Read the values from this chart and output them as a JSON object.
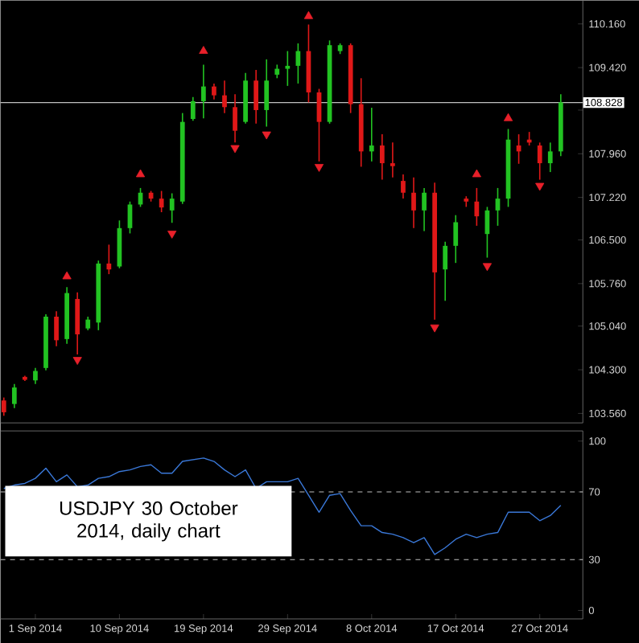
{
  "chart_data": [
    {
      "type": "candlestick",
      "categories": [
        null,
        null,
        null,
        null,
        null,
        null,
        null,
        null,
        null,
        null,
        null,
        null,
        null,
        null,
        null,
        null,
        null,
        null,
        null,
        null,
        null,
        null,
        null,
        null,
        null,
        null,
        null,
        null,
        null,
        null,
        null,
        null,
        null,
        null,
        null,
        null,
        null,
        null,
        null,
        null,
        null,
        null,
        null,
        null,
        null,
        null,
        null,
        null,
        null,
        null,
        null,
        null,
        null,
        null
      ],
      "ohlc": [
        [
          103.78,
          103.83,
          103.52,
          103.58
        ],
        [
          103.72,
          104.06,
          103.65,
          104.0
        ],
        [
          104.18,
          104.2,
          104.11,
          104.13
        ],
        [
          104.12,
          104.33,
          104.06,
          104.28
        ],
        [
          104.33,
          105.24,
          104.29,
          105.2
        ],
        [
          105.2,
          105.29,
          104.7,
          104.8
        ],
        [
          104.82,
          105.7,
          104.74,
          105.6
        ],
        [
          105.5,
          105.61,
          104.56,
          104.9
        ],
        [
          105.0,
          105.2,
          104.97,
          105.15
        ],
        [
          105.1,
          106.15,
          104.97,
          106.1
        ],
        [
          106.1,
          106.42,
          105.92,
          106.0
        ],
        [
          106.05,
          106.83,
          106.02,
          106.7
        ],
        [
          106.7,
          107.15,
          106.61,
          107.1
        ],
        [
          107.1,
          107.38,
          107.06,
          107.3
        ],
        [
          107.3,
          107.33,
          107.15,
          107.2
        ],
        [
          107.2,
          107.33,
          106.97,
          107.05
        ],
        [
          107.0,
          107.29,
          106.79,
          107.2
        ],
        [
          107.15,
          108.65,
          107.11,
          108.5
        ],
        [
          108.55,
          108.92,
          108.52,
          108.85
        ],
        [
          108.85,
          109.47,
          108.56,
          109.1
        ],
        [
          109.1,
          109.15,
          108.88,
          108.95
        ],
        [
          108.95,
          109.2,
          108.65,
          108.75
        ],
        [
          108.75,
          108.97,
          108.15,
          108.35
        ],
        [
          108.5,
          109.33,
          108.47,
          109.2
        ],
        [
          109.2,
          109.38,
          108.47,
          108.7
        ],
        [
          108.7,
          109.56,
          108.42,
          109.2
        ],
        [
          109.3,
          109.47,
          109.24,
          109.4
        ],
        [
          109.4,
          109.7,
          109.11,
          109.45
        ],
        [
          109.45,
          109.83,
          109.15,
          109.7
        ],
        [
          109.7,
          110.15,
          108.83,
          109.0
        ],
        [
          109.0,
          109.06,
          107.83,
          108.5
        ],
        [
          108.5,
          109.88,
          108.47,
          109.8
        ],
        [
          109.7,
          109.83,
          109.65,
          109.8
        ],
        [
          109.8,
          109.83,
          108.65,
          108.8
        ],
        [
          108.8,
          109.24,
          107.74,
          108.0
        ],
        [
          108.0,
          108.74,
          107.83,
          108.1
        ],
        [
          108.1,
          108.29,
          107.52,
          107.8
        ],
        [
          107.8,
          108.15,
          107.56,
          107.75
        ],
        [
          107.5,
          107.61,
          107.2,
          107.3
        ],
        [
          107.3,
          107.56,
          106.7,
          107.0
        ],
        [
          107.0,
          107.38,
          106.65,
          107.3
        ],
        [
          107.3,
          107.47,
          105.15,
          105.95
        ],
        [
          106.0,
          106.47,
          105.47,
          106.4
        ],
        [
          106.4,
          106.92,
          106.11,
          106.8
        ],
        [
          107.2,
          107.24,
          107.06,
          107.15
        ],
        [
          107.15,
          107.38,
          106.74,
          106.9
        ],
        [
          106.6,
          107.06,
          106.2,
          107.0
        ],
        [
          107.0,
          107.38,
          106.74,
          107.2
        ],
        [
          107.2,
          108.38,
          107.06,
          108.2
        ],
        [
          108.1,
          108.29,
          107.79,
          108.0
        ],
        [
          108.2,
          108.33,
          108.1,
          108.15
        ],
        [
          108.1,
          108.15,
          107.52,
          107.8
        ],
        [
          107.8,
          108.15,
          107.65,
          108.0
        ],
        [
          108.0,
          108.97,
          107.92,
          108.83
        ]
      ],
      "colors": [
        "#e01818",
        "#22c322",
        "#e01818",
        "#22c322",
        "#22c322",
        "#e01818",
        "#22c322",
        "#e01818",
        "#22c322",
        "#22c322",
        "#e01818",
        "#22c322",
        "#22c322",
        "#22c322",
        "#e01818",
        "#e01818",
        "#22c322",
        "#22c322",
        "#22c322",
        "#22c322",
        "#e01818",
        "#e01818",
        "#e01818",
        "#22c322",
        "#e01818",
        "#22c322",
        "#22c322",
        "#22c322",
        "#22c322",
        "#e01818",
        "#e01818",
        "#22c322",
        "#22c322",
        "#e01818",
        "#e01818",
        "#22c322",
        "#e01818",
        "#e01818",
        "#e01818",
        "#e01818",
        "#22c322",
        "#e01818",
        "#22c322",
        "#22c322",
        "#e01818",
        "#e01818",
        "#22c322",
        "#22c322",
        "#22c322",
        "#e01818",
        "#e01818",
        "#e01818",
        "#22c322",
        "#22c322"
      ],
      "series": [
        {
          "type": "scatter",
          "color": "#e8202a",
          "marker": "triangle",
          "values": [
            null,
            null,
            null,
            null,
            null,
            null,
            105.88,
            null,
            null,
            null,
            null,
            null,
            null,
            107.61,
            null,
            null,
            null,
            null,
            null,
            109.7,
            null,
            null,
            null,
            null,
            null,
            null,
            null,
            null,
            null,
            110.29,
            null,
            null,
            null,
            null,
            null,
            null,
            null,
            null,
            null,
            null,
            null,
            null,
            null,
            null,
            null,
            107.61,
            null,
            null,
            108.56,
            null,
            null,
            null,
            null,
            null
          ]
        },
        {
          "type": "scatter",
          "color": "#e8202a",
          "marker": "triangle",
          "values": [
            null,
            null,
            null,
            null,
            null,
            null,
            null,
            104.47,
            null,
            null,
            null,
            null,
            null,
            null,
            null,
            null,
            106.61,
            null,
            null,
            null,
            null,
            null,
            108.06,
            null,
            null,
            108.29,
            null,
            null,
            null,
            null,
            107.74,
            null,
            null,
            null,
            null,
            null,
            null,
            null,
            null,
            null,
            null,
            105.02,
            null,
            null,
            null,
            null,
            106.06,
            null,
            null,
            null,
            null,
            107.42,
            null,
            null
          ]
        }
      ],
      "ylim": [
        103.4,
        110.56
      ],
      "yticks": [
        {
          "value": 103.56,
          "label": "103.560"
        },
        {
          "value": 104.3,
          "label": "104.300"
        },
        {
          "value": 105.04,
          "label": "105.040"
        },
        {
          "value": 105.76,
          "label": "105.760"
        },
        {
          "value": 106.5,
          "label": "106.500"
        },
        {
          "value": 107.22,
          "label": "107.220"
        },
        {
          "value": 107.96,
          "label": "107.960"
        },
        {
          "value": 108.7,
          "label": null
        },
        {
          "value": 109.42,
          "label": "109.420"
        },
        {
          "value": 110.16,
          "label": "110.160"
        }
      ],
      "tick_labels": "y",
      "ref_lines": [
        {
          "axis": "y",
          "value": 108.828,
          "label": "108.828",
          "color": "#c0c0c0"
        }
      ]
    },
    {
      "type": "line",
      "categories": [
        null,
        null,
        null,
        "1 Sep 2014",
        null,
        null,
        null,
        null,
        null,
        null,
        null,
        "10 Sep 2014",
        null,
        null,
        null,
        null,
        null,
        null,
        null,
        "19 Sep 2014",
        null,
        null,
        null,
        null,
        null,
        null,
        null,
        "29 Sep 2014",
        null,
        null,
        null,
        null,
        null,
        null,
        null,
        "8 Oct 2014",
        null,
        null,
        null,
        null,
        null,
        null,
        null,
        "17 Oct 2014",
        null,
        null,
        null,
        null,
        null,
        null,
        null,
        "27 Oct 2014",
        null,
        null
      ],
      "series": [
        {
          "color": "#3a78d8",
          "values": [
            72,
            74,
            75,
            78,
            84,
            76,
            80,
            73,
            74,
            78,
            79,
            82,
            83,
            85,
            86,
            81,
            81,
            88,
            89,
            90,
            88,
            83,
            79,
            83,
            72,
            76,
            76,
            76,
            78,
            68,
            58,
            68,
            69,
            59,
            50,
            50,
            46,
            45,
            43,
            40,
            43,
            33,
            37,
            42,
            45,
            43,
            45,
            46,
            58,
            58,
            58,
            53,
            56,
            62
          ]
        }
      ],
      "ylim": [
        -5,
        106
      ],
      "yticks": [
        0,
        30,
        70,
        100
      ],
      "ref_lines": [
        {
          "axis": "y",
          "value": 30,
          "color": "#c0c0c0",
          "line_style": "dashed"
        },
        {
          "axis": "y",
          "value": 70,
          "color": "#c0c0c0",
          "line_style": "dashed"
        }
      ],
      "annotations": [
        "USDJPY 30 October 2014, daily chart"
      ]
    }
  ]
}
